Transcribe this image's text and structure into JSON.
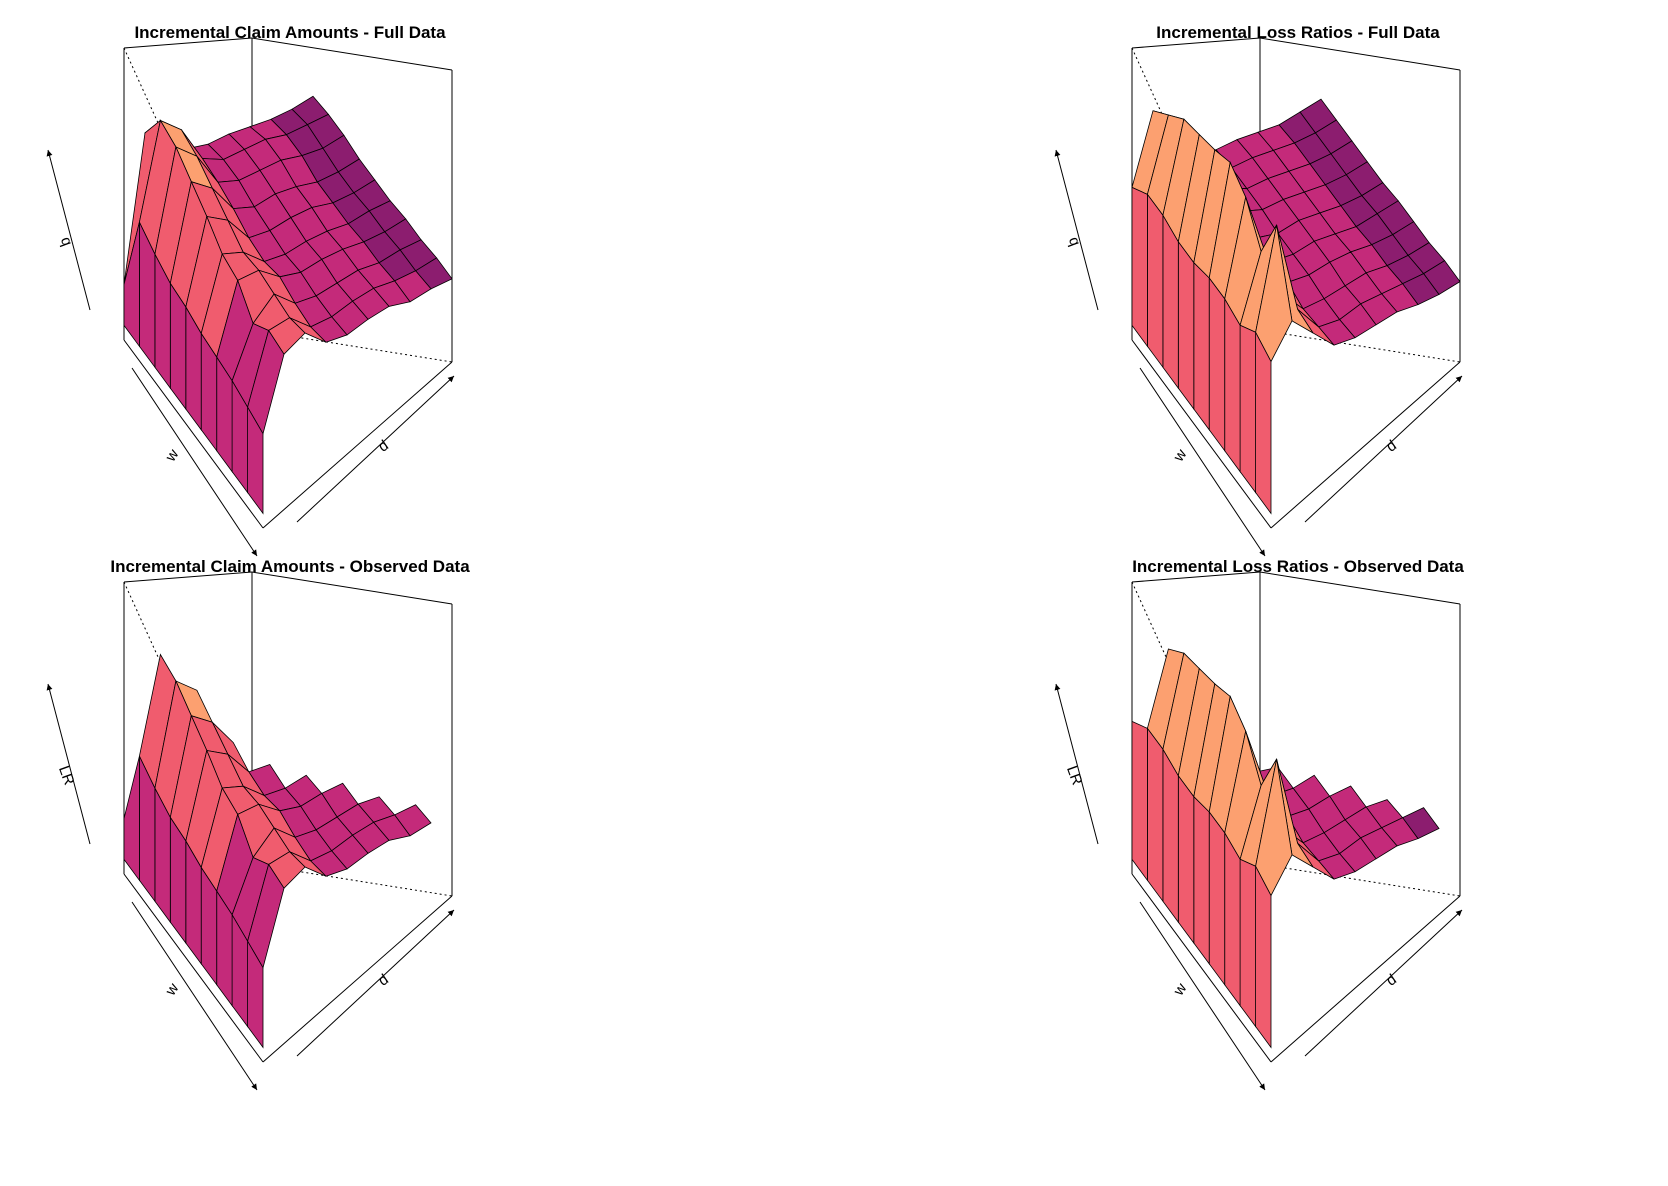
{
  "figure": {
    "panels": [
      {
        "title": "Incremental Claim Amounts - Full Data",
        "xlab": "w",
        "ylab": "d",
        "zlab": "q"
      },
      {
        "title": "Incremental Loss Ratios - Full Data",
        "xlab": "w",
        "ylab": "d",
        "zlab": "q"
      },
      {
        "title": "Incremental Claim Amounts - Observed Data",
        "xlab": "w",
        "ylab": "d",
        "zlab": "LR"
      },
      {
        "title": "Incremental Loss Ratios - Observed Data",
        "xlab": "w",
        "ylab": "d",
        "zlab": "LR"
      }
    ]
  },
  "chart_data": [
    {
      "type": "surface",
      "title": "Incremental Claim Amounts - Full Data",
      "xlabel": "w",
      "ylabel": "d",
      "zlabel": "q",
      "zlim": [
        0,
        1
      ],
      "w": [
        1,
        2,
        3,
        4,
        5,
        6,
        7,
        8,
        9,
        10
      ],
      "d": [
        1,
        2,
        3,
        4,
        5,
        6,
        7,
        8,
        9,
        10
      ],
      "observed": "all",
      "z": [
        [
          0.34,
          0.56,
          0.57,
          0.47,
          0.43,
          0.42,
          0.4,
          0.35,
          0.33,
          0.3
        ],
        [
          0.36,
          0.57,
          0.55,
          0.45,
          0.42,
          0.41,
          0.39,
          0.35,
          0.32,
          0.3
        ],
        [
          0.38,
          0.52,
          0.56,
          0.46,
          0.42,
          0.4,
          0.38,
          0.34,
          0.32,
          0.29
        ],
        [
          0.39,
          0.6,
          0.57,
          0.48,
          0.43,
          0.41,
          0.38,
          0.34,
          0.31,
          0.29
        ],
        [
          0.4,
          0.62,
          0.56,
          0.46,
          0.42,
          0.4,
          0.37,
          0.33,
          0.31,
          0.28
        ],
        [
          0.42,
          0.68,
          0.6,
          0.47,
          0.43,
          0.41,
          0.38,
          0.33,
          0.3,
          0.28
        ],
        [
          0.43,
          0.73,
          0.64,
          0.5,
          0.44,
          0.42,
          0.38,
          0.33,
          0.3,
          0.28
        ],
        [
          0.46,
          0.78,
          0.68,
          0.52,
          0.46,
          0.43,
          0.4,
          0.35,
          0.31,
          0.29
        ],
        [
          0.5,
          0.8,
          0.7,
          0.53,
          0.46,
          0.43,
          0.4,
          0.35,
          0.32,
          0.29
        ],
        [
          0.2,
          0.68,
          0.6,
          0.49,
          0.44,
          0.41,
          0.37,
          0.33,
          0.3,
          0.28
        ]
      ]
    },
    {
      "type": "surface",
      "title": "Incremental Loss Ratios - Full Data",
      "xlabel": "w",
      "ylabel": "d",
      "zlabel": "q",
      "zlim": [
        0,
        1
      ],
      "w": [
        1,
        2,
        3,
        4,
        5,
        6,
        7,
        8,
        9,
        10
      ],
      "d": [
        1,
        2,
        3,
        4,
        5,
        6,
        7,
        8,
        9,
        10
      ],
      "observed": "all",
      "z": [
        [
          0.6,
          0.68,
          0.57,
          0.46,
          0.42,
          0.4,
          0.38,
          0.34,
          0.31,
          0.29
        ],
        [
          0.63,
          0.95,
          0.58,
          0.45,
          0.41,
          0.4,
          0.37,
          0.34,
          0.31,
          0.29
        ],
        [
          0.58,
          0.78,
          0.56,
          0.44,
          0.41,
          0.39,
          0.37,
          0.33,
          0.3,
          0.28
        ],
        [
          0.6,
          0.9,
          0.62,
          0.46,
          0.42,
          0.4,
          0.37,
          0.33,
          0.3,
          0.28
        ],
        [
          0.6,
          0.95,
          0.64,
          0.46,
          0.42,
          0.4,
          0.36,
          0.32,
          0.3,
          0.28
        ],
        [
          0.58,
          0.92,
          0.66,
          0.47,
          0.42,
          0.4,
          0.36,
          0.32,
          0.29,
          0.27
        ],
        [
          0.58,
          0.9,
          0.7,
          0.49,
          0.43,
          0.4,
          0.36,
          0.32,
          0.29,
          0.27
        ],
        [
          0.6,
          0.88,
          0.72,
          0.5,
          0.43,
          0.4,
          0.36,
          0.32,
          0.29,
          0.27
        ],
        [
          0.6,
          0.82,
          0.7,
          0.49,
          0.43,
          0.4,
          0.36,
          0.32,
          0.29,
          0.27
        ],
        [
          0.55,
          0.76,
          0.64,
          0.47,
          0.42,
          0.39,
          0.35,
          0.31,
          0.29,
          0.27
        ]
      ]
    },
    {
      "type": "surface",
      "title": "Incremental Claim Amounts - Observed Data",
      "xlabel": "w",
      "ylabel": "d",
      "zlabel": "LR",
      "zlim": [
        0,
        1
      ],
      "w": [
        1,
        2,
        3,
        4,
        5,
        6,
        7,
        8,
        9,
        10
      ],
      "d": [
        1,
        2,
        3,
        4,
        5,
        6,
        7,
        8,
        9,
        10
      ],
      "observed": "upper-triangle",
      "z": [
        [
          0.34,
          0.56,
          0.57,
          0.47,
          0.43,
          0.42,
          0.4,
          0.35,
          0.33,
          0.3
        ],
        [
          0.36,
          0.57,
          0.55,
          0.45,
          0.42,
          0.41,
          0.39,
          0.35,
          0.32,
          null
        ],
        [
          0.38,
          0.52,
          0.56,
          0.46,
          0.42,
          0.4,
          0.38,
          0.34,
          null,
          null
        ],
        [
          0.39,
          0.6,
          0.57,
          0.48,
          0.43,
          0.41,
          0.38,
          null,
          null,
          null
        ],
        [
          0.4,
          0.62,
          0.56,
          0.46,
          0.42,
          0.4,
          null,
          null,
          null,
          null
        ],
        [
          0.42,
          0.68,
          0.6,
          0.47,
          0.43,
          null,
          null,
          null,
          null,
          null
        ],
        [
          0.43,
          0.73,
          0.64,
          0.5,
          null,
          null,
          null,
          null,
          null,
          null
        ],
        [
          0.46,
          0.78,
          0.68,
          null,
          null,
          null,
          null,
          null,
          null,
          null
        ],
        [
          0.5,
          0.8,
          null,
          null,
          null,
          null,
          null,
          null,
          null,
          null
        ],
        [
          0.2,
          null,
          null,
          null,
          null,
          null,
          null,
          null,
          null,
          null
        ]
      ]
    },
    {
      "type": "surface",
      "title": "Incremental Loss Ratios - Observed Data",
      "xlabel": "w",
      "ylabel": "d",
      "zlabel": "LR",
      "zlim": [
        0,
        1
      ],
      "w": [
        1,
        2,
        3,
        4,
        5,
        6,
        7,
        8,
        9,
        10
      ],
      "d": [
        1,
        2,
        3,
        4,
        5,
        6,
        7,
        8,
        9,
        10
      ],
      "observed": "upper-triangle",
      "z": [
        [
          0.6,
          0.68,
          0.57,
          0.46,
          0.42,
          0.4,
          0.38,
          0.34,
          0.31,
          0.29
        ],
        [
          0.63,
          0.95,
          0.58,
          0.45,
          0.41,
          0.4,
          0.37,
          0.34,
          0.31,
          null
        ],
        [
          0.58,
          0.78,
          0.56,
          0.44,
          0.41,
          0.39,
          0.37,
          0.33,
          null,
          null
        ],
        [
          0.6,
          0.9,
          0.62,
          0.46,
          0.42,
          0.4,
          0.37,
          null,
          null,
          null
        ],
        [
          0.6,
          0.95,
          0.64,
          0.46,
          0.42,
          0.4,
          null,
          null,
          null,
          null
        ],
        [
          0.58,
          0.92,
          0.66,
          0.47,
          0.42,
          null,
          null,
          null,
          null,
          null
        ],
        [
          0.58,
          0.9,
          0.7,
          0.49,
          null,
          null,
          null,
          null,
          null,
          null
        ],
        [
          0.6,
          0.88,
          0.72,
          null,
          null,
          null,
          null,
          null,
          null,
          null
        ],
        [
          0.6,
          0.82,
          null,
          null,
          null,
          null,
          null,
          null,
          null,
          null
        ],
        [
          0.55,
          null,
          null,
          null,
          null,
          null,
          null,
          null,
          null,
          null
        ]
      ]
    }
  ],
  "palette": [
    "#6b1a5e",
    "#8c1d6f",
    "#c42a7a",
    "#f05c6e",
    "#fca070",
    "#fcd99a"
  ]
}
